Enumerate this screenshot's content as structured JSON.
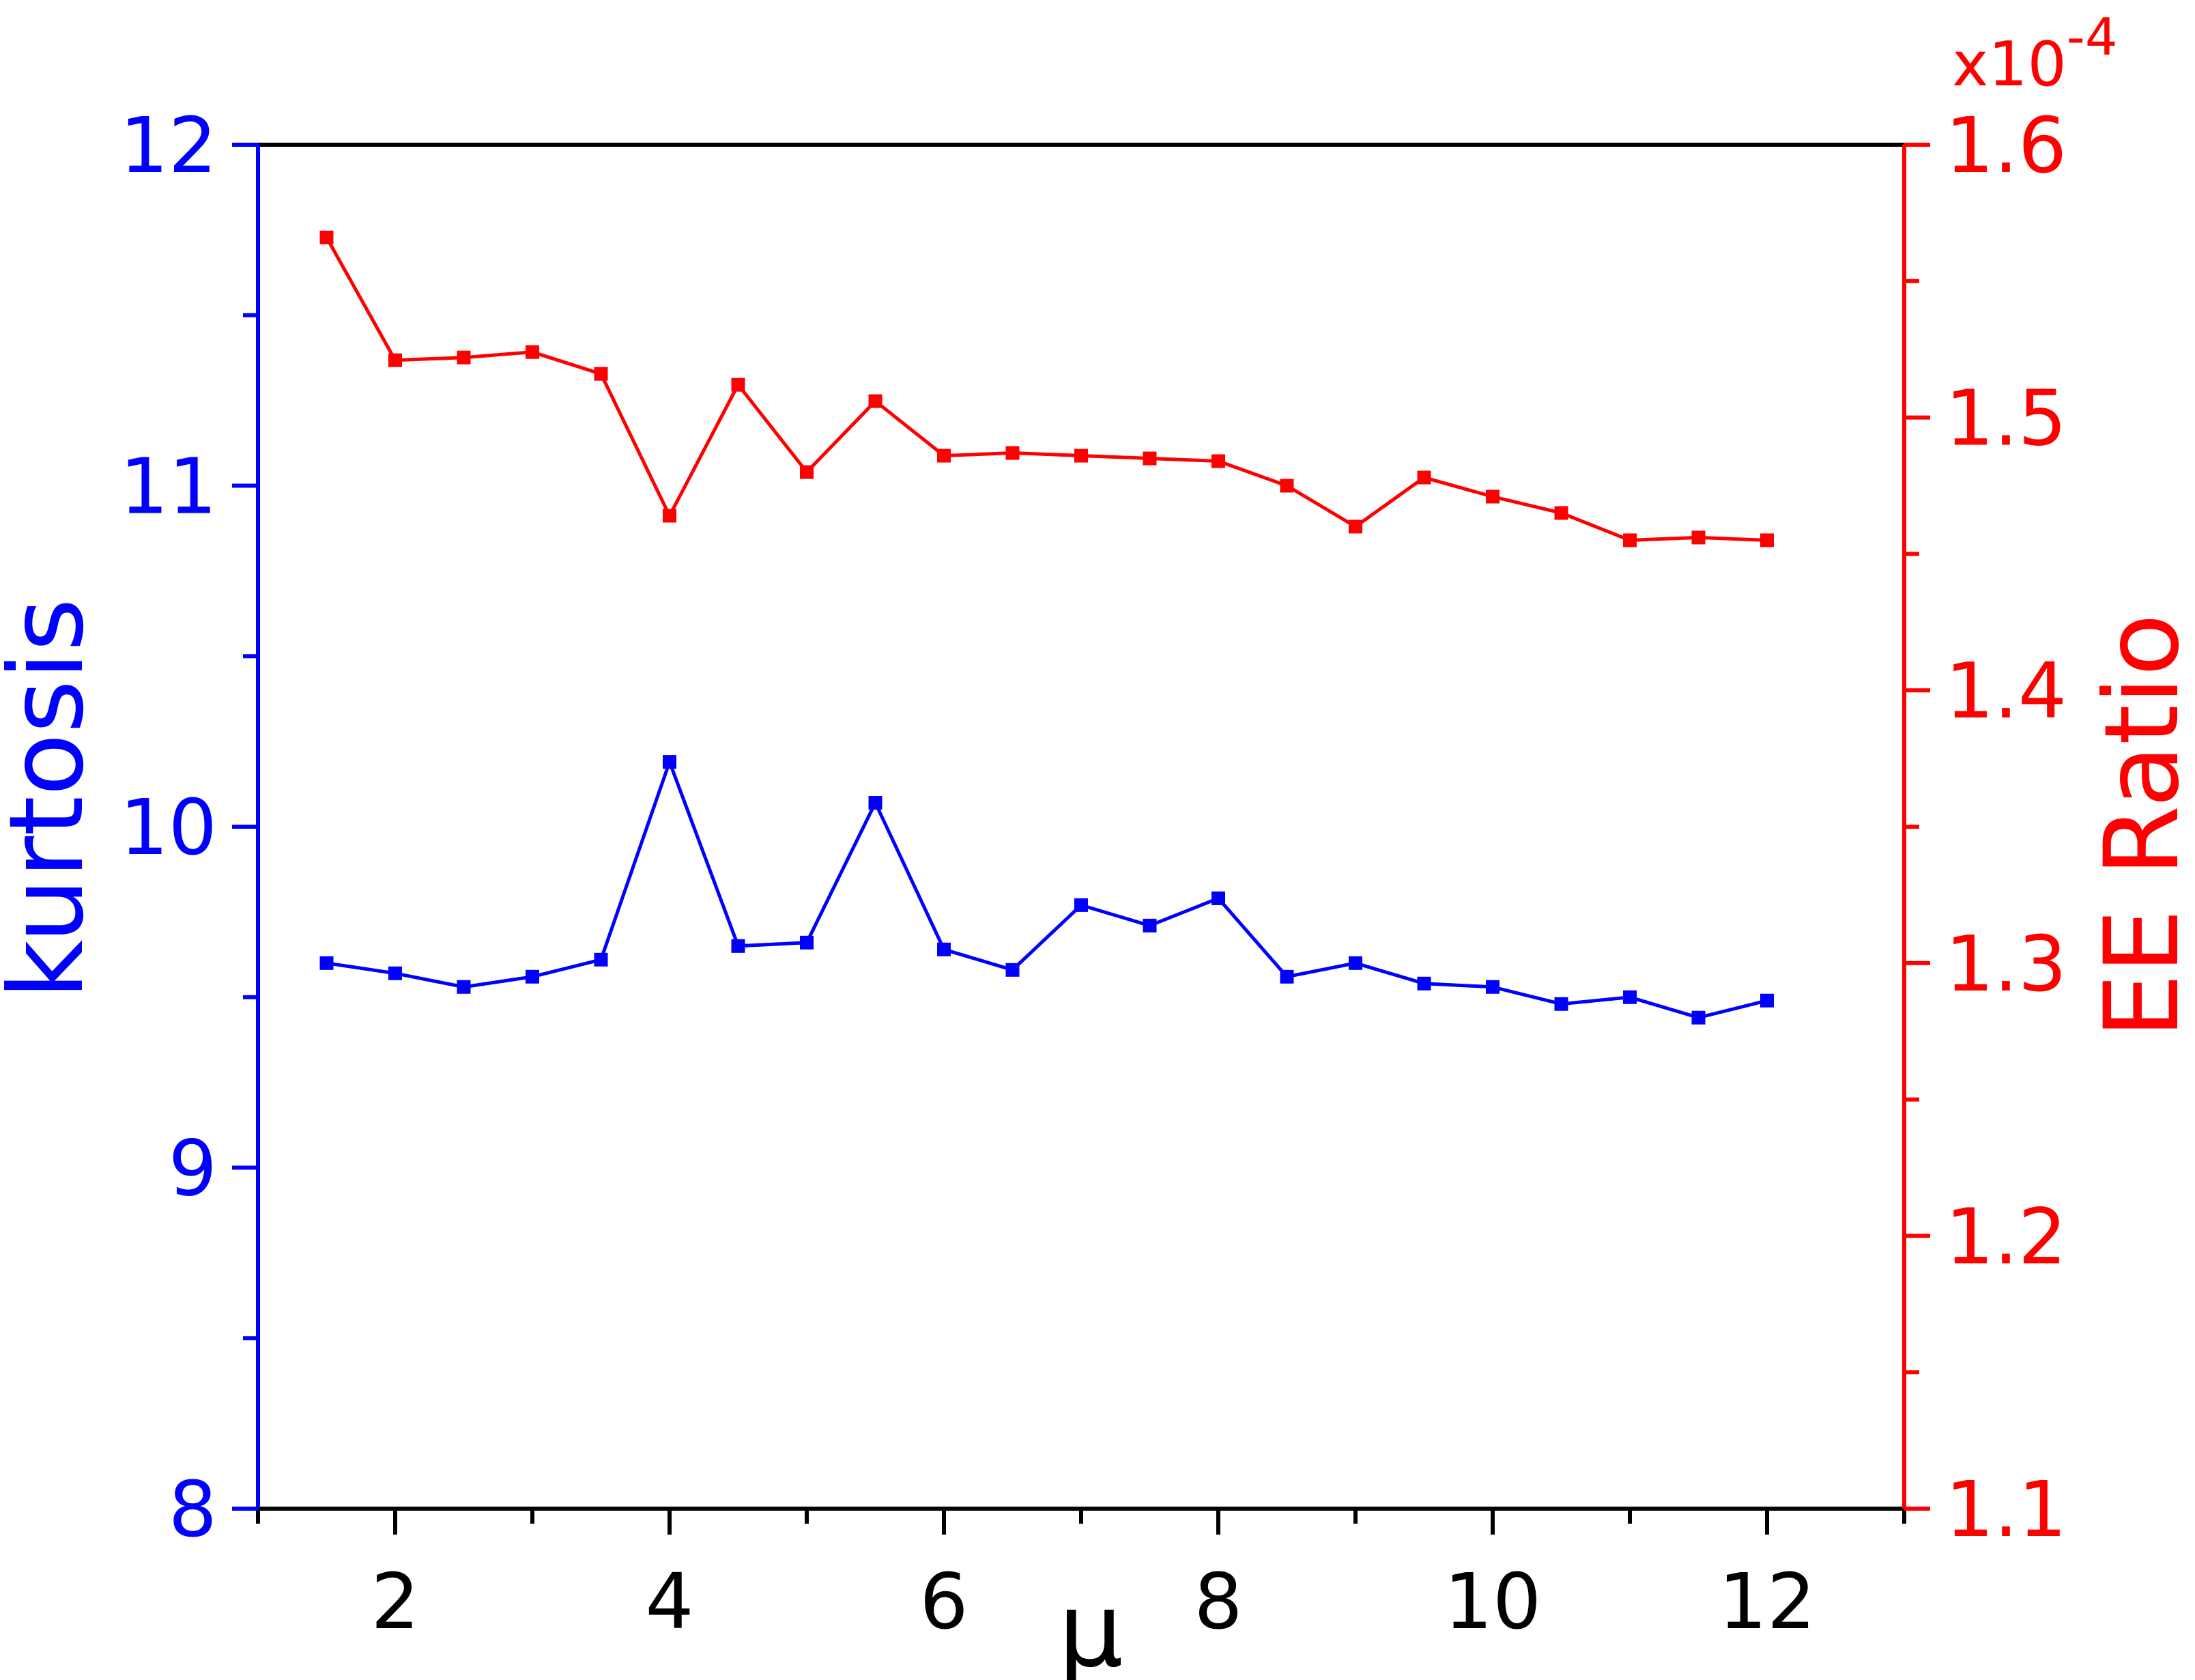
{
  "chart_data": {
    "type": "line",
    "xlabel": "μ",
    "x": [
      1.5,
      2,
      2.5,
      3,
      3.5,
      4,
      4.5,
      5,
      5.5,
      6,
      6.5,
      7,
      7.5,
      8,
      8.5,
      9,
      9.5,
      10,
      10.5,
      11,
      11.5,
      12
    ],
    "xlim": [
      1,
      13
    ],
    "xticks": [
      2,
      4,
      6,
      8,
      10,
      12
    ],
    "left_axis": {
      "label": "kurtosis",
      "color": "#0000ff",
      "ylim": [
        8,
        12
      ],
      "ticks": [
        8,
        9,
        10,
        11,
        12
      ]
    },
    "right_axis": {
      "label": "EE Ratio",
      "color": "#ff0000",
      "ylim": [
        1.1,
        1.6
      ],
      "ticks": [
        "1.1",
        "1.2",
        "1.3",
        "1.4",
        "1.5",
        "1.6"
      ],
      "multiplier_base": "x10",
      "multiplier_exp": "-4"
    },
    "series": [
      {
        "axis": "left",
        "color": "#0000ff",
        "marker": "square",
        "values": [
          9.6,
          9.57,
          9.53,
          9.56,
          9.61,
          10.19,
          9.65,
          9.66,
          10.07,
          9.64,
          9.58,
          9.77,
          9.71,
          9.79,
          9.56,
          9.6,
          9.54,
          9.53,
          9.48,
          9.5,
          9.44,
          9.49
        ]
      },
      {
        "axis": "right",
        "color": "#ff0000",
        "marker": "square",
        "values": [
          1.566,
          1.521,
          1.522,
          1.524,
          1.516,
          1.464,
          1.512,
          1.48,
          1.506,
          1.486,
          1.487,
          1.486,
          1.485,
          1.484,
          1.475,
          1.46,
          1.478,
          1.471,
          1.465,
          1.455,
          1.456,
          1.455
        ]
      }
    ],
    "grid": false,
    "legend": "none"
  }
}
